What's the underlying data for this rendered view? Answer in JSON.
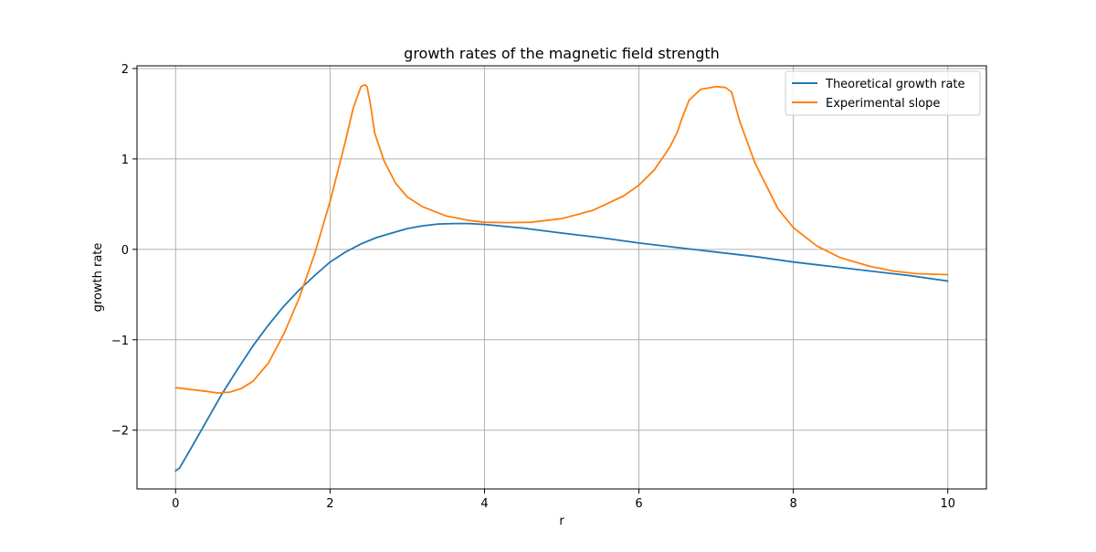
{
  "chart_data": {
    "type": "line",
    "title": "growth rates of the magnetic field strength",
    "xlabel": "r",
    "ylabel": "growth rate",
    "xlim": [
      -0.5,
      10.5
    ],
    "ylim": [
      -2.65,
      2.03
    ],
    "xticks": [
      0,
      2,
      4,
      6,
      8,
      10
    ],
    "xtick_labels": [
      "0",
      "2",
      "4",
      "6",
      "8",
      "10"
    ],
    "yticks": [
      -2,
      -1,
      0,
      1,
      2
    ],
    "ytick_labels": [
      "−2",
      "−1",
      "0",
      "1",
      "2"
    ],
    "grid": true,
    "legend_position": "top-right",
    "series": [
      {
        "name": "Theoretical growth rate",
        "color": "#1f77b4",
        "x": [
          0,
          0.05,
          0.2,
          0.4,
          0.6,
          0.8,
          1.0,
          1.2,
          1.4,
          1.6,
          1.8,
          2.0,
          2.2,
          2.4,
          2.6,
          2.8,
          3.0,
          3.2,
          3.4,
          3.6,
          3.8,
          4.0,
          4.5,
          5.0,
          5.5,
          6.0,
          6.5,
          7.0,
          7.5,
          8.0,
          8.5,
          9.0,
          9.5,
          10.0
        ],
        "y": [
          -2.45,
          -2.42,
          -2.2,
          -1.9,
          -1.6,
          -1.33,
          -1.07,
          -0.84,
          -0.63,
          -0.45,
          -0.29,
          -0.14,
          -0.03,
          0.06,
          0.13,
          0.18,
          0.23,
          0.26,
          0.28,
          0.285,
          0.285,
          0.275,
          0.235,
          0.18,
          0.13,
          0.07,
          0.02,
          -0.03,
          -0.08,
          -0.14,
          -0.19,
          -0.24,
          -0.29,
          -0.35
        ]
      },
      {
        "name": "Experimental slope",
        "color": "#ff7f0e",
        "x": [
          0,
          0.2,
          0.4,
          0.55,
          0.7,
          0.85,
          1.0,
          1.2,
          1.4,
          1.6,
          1.8,
          2.0,
          2.1,
          2.2,
          2.3,
          2.4,
          2.45,
          2.48,
          2.52,
          2.58,
          2.7,
          2.85,
          3.0,
          3.2,
          3.5,
          3.8,
          4.0,
          4.3,
          4.6,
          5.0,
          5.4,
          5.8,
          6.0,
          6.2,
          6.4,
          6.5,
          6.55,
          6.65,
          6.8,
          7.0,
          7.12,
          7.2,
          7.3,
          7.5,
          7.8,
          8.0,
          8.3,
          8.6,
          9.0,
          9.3,
          9.6,
          10.0
        ],
        "y": [
          -1.53,
          -1.55,
          -1.57,
          -1.59,
          -1.58,
          -1.54,
          -1.46,
          -1.26,
          -0.94,
          -0.54,
          -0.05,
          0.53,
          0.86,
          1.2,
          1.56,
          1.8,
          1.82,
          1.8,
          1.62,
          1.28,
          0.98,
          0.73,
          0.58,
          0.47,
          0.37,
          0.32,
          0.3,
          0.295,
          0.3,
          0.34,
          0.43,
          0.59,
          0.71,
          0.88,
          1.13,
          1.3,
          1.43,
          1.65,
          1.77,
          1.8,
          1.79,
          1.74,
          1.43,
          0.96,
          0.45,
          0.24,
          0.04,
          -0.09,
          -0.19,
          -0.24,
          -0.27,
          -0.28
        ]
      }
    ]
  }
}
